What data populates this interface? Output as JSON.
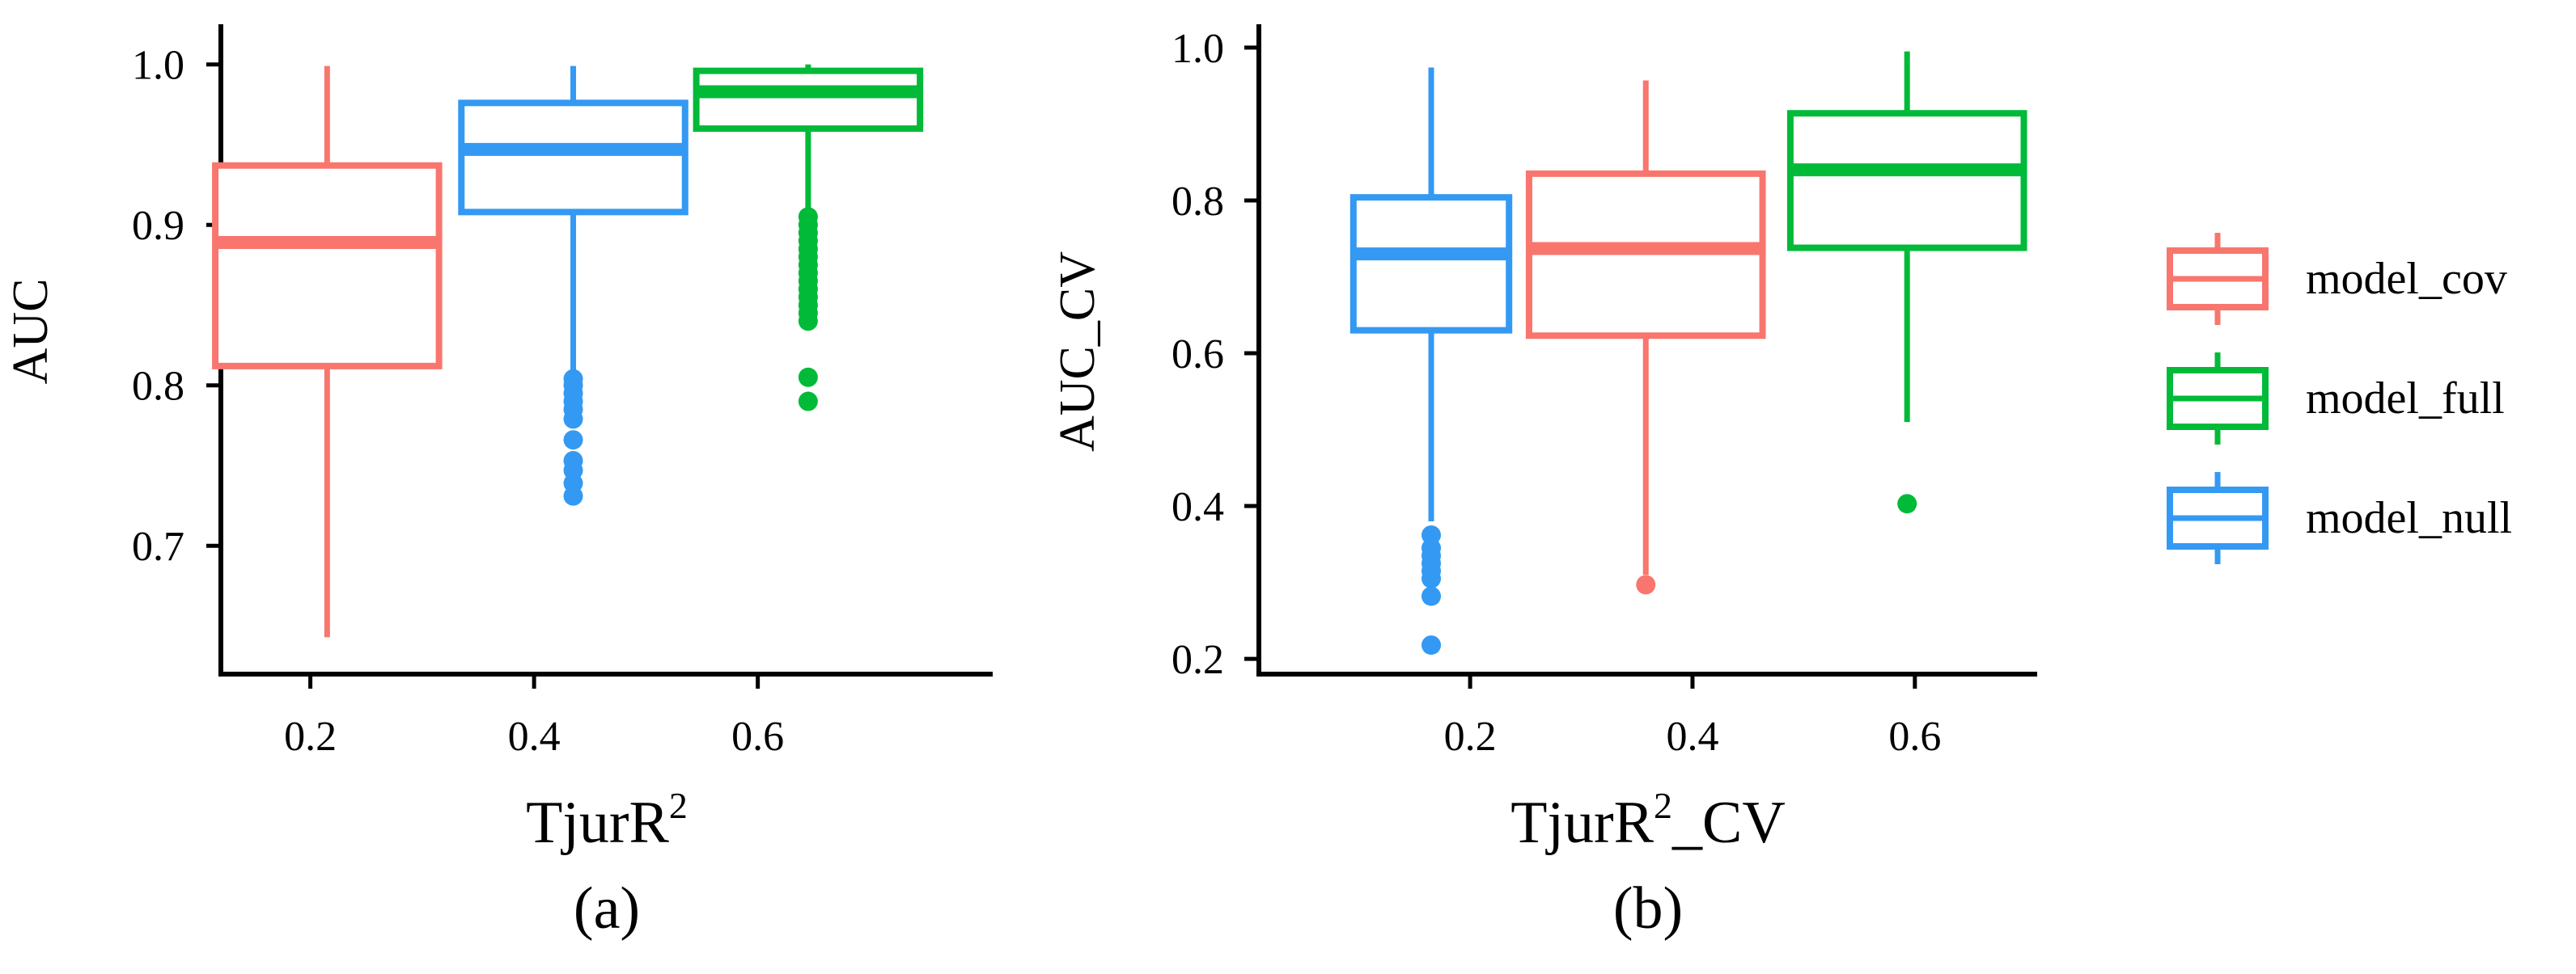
{
  "chart_data": [
    {
      "type": "box",
      "panel_label": "(a)",
      "xlabel": "TjurR",
      "xlabel_superscript": "2",
      "xlabel_suffix": "",
      "ylabel": "AUC",
      "ylim": [
        0.62,
        1.02
      ],
      "yticks": [
        0.7,
        0.8,
        0.9,
        1.0
      ],
      "ytick_labels": [
        "0.7",
        "0.8",
        "0.9",
        "1.0"
      ],
      "xlim": [
        0.12,
        0.81
      ],
      "xticks": [
        0.2,
        0.4,
        0.6
      ],
      "xtick_labels": [
        "0.2",
        "0.4",
        "0.6"
      ],
      "boxes": [
        {
          "series": "model_cov",
          "x_center": 0.215,
          "box_width": 0.2,
          "whisker_low": 0.643,
          "q1": 0.812,
          "median": 0.889,
          "q3": 0.937,
          "whisker_high": 0.999,
          "outliers": []
        },
        {
          "series": "model_null",
          "x_center": 0.435,
          "box_width": 0.2,
          "whisker_low": 0.808,
          "q1": 0.908,
          "median": 0.947,
          "q3": 0.976,
          "whisker_high": 0.999,
          "outliers": [
            0.731,
            0.739,
            0.747,
            0.753,
            0.766,
            0.779,
            0.785,
            0.79,
            0.795,
            0.8,
            0.804
          ]
        },
        {
          "series": "model_full",
          "x_center": 0.645,
          "box_width": 0.2,
          "whisker_low": 0.908,
          "q1": 0.96,
          "median": 0.983,
          "q3": 0.996,
          "whisker_high": 1.0,
          "outliers": [
            0.79,
            0.805,
            0.84,
            0.845,
            0.85,
            0.855,
            0.86,
            0.865,
            0.87,
            0.875,
            0.88,
            0.885,
            0.89,
            0.895,
            0.9,
            0.905
          ]
        }
      ]
    },
    {
      "type": "box",
      "panel_label": "(b)",
      "xlabel": "TjurR",
      "xlabel_superscript": "2",
      "xlabel_suffix": "_CV",
      "ylabel": "AUC_CV",
      "ylim": [
        0.18,
        1.02
      ],
      "yticks": [
        0.2,
        0.4,
        0.6,
        0.8,
        1.0
      ],
      "ytick_labels": [
        "0.2",
        "0.4",
        "0.6",
        "0.8",
        "1.0"
      ],
      "xlim": [
        0.01,
        0.71
      ],
      "xticks": [
        0.2,
        0.4,
        0.6
      ],
      "xtick_labels": [
        "0.2",
        "0.4",
        "0.6"
      ],
      "boxes": [
        {
          "series": "model_null",
          "x_center": 0.165,
          "box_width": 0.14,
          "whisker_low": 0.38,
          "q1": 0.63,
          "median": 0.73,
          "q3": 0.804,
          "whisker_high": 0.974,
          "outliers": [
            0.218,
            0.282,
            0.305,
            0.315,
            0.325,
            0.335,
            0.345,
            0.362
          ]
        },
        {
          "series": "model_cov",
          "x_center": 0.358,
          "box_width": 0.21,
          "whisker_low": 0.31,
          "q1": 0.623,
          "median": 0.737,
          "q3": 0.835,
          "whisker_high": 0.957,
          "outliers": [
            0.297
          ]
        },
        {
          "series": "model_full",
          "x_center": 0.593,
          "box_width": 0.21,
          "whisker_low": 0.51,
          "q1": 0.738,
          "median": 0.84,
          "q3": 0.914,
          "whisker_high": 0.995,
          "outliers": [
            0.403
          ]
        }
      ]
    }
  ],
  "legend": {
    "items": [
      {
        "name": "model_cov",
        "color": "#F8766D"
      },
      {
        "name": "model_full",
        "color": "#00BA38"
      },
      {
        "name": "model_null",
        "color": "#3399F3"
      }
    ]
  },
  "colors": {
    "model_cov": "#F8766D",
    "model_full": "#00BA38",
    "model_null": "#3399F3"
  }
}
